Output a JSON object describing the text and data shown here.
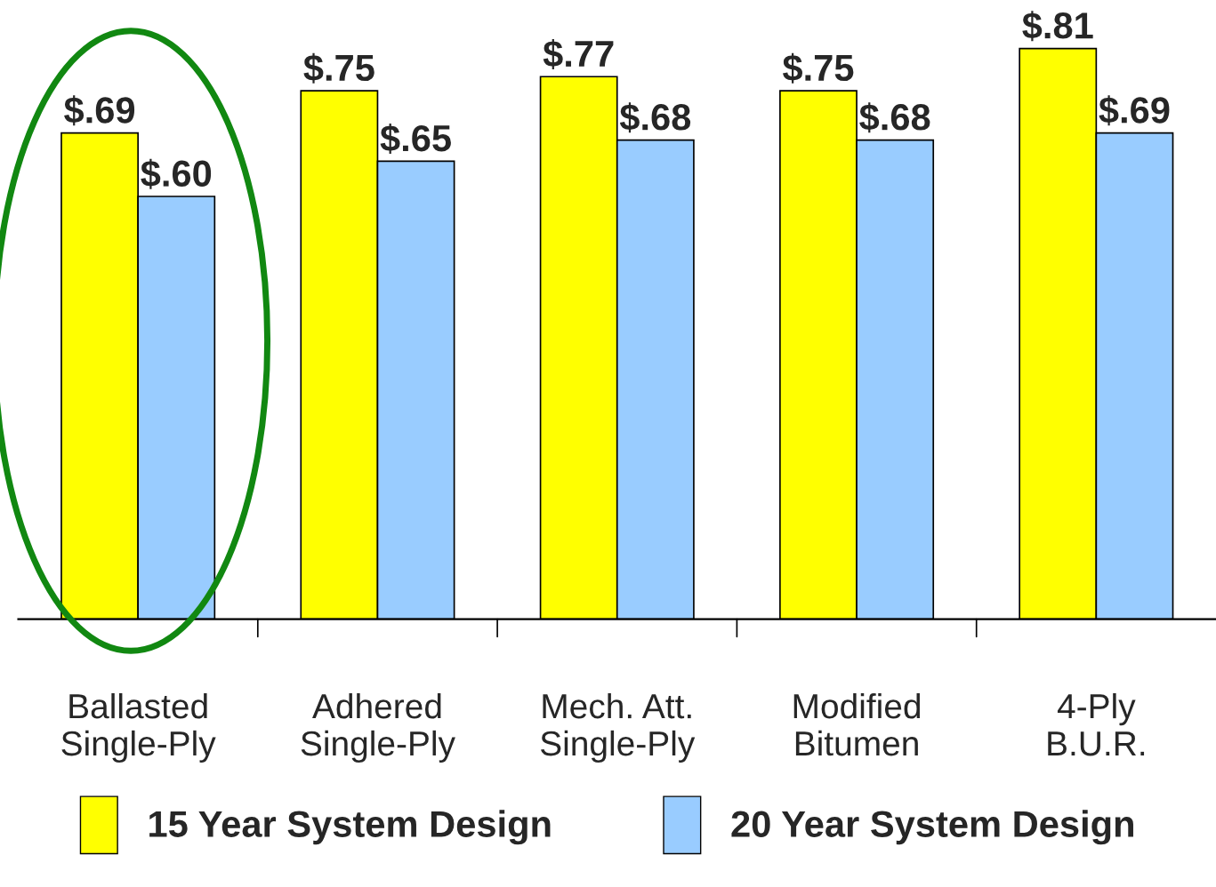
{
  "chart_data": {
    "type": "bar",
    "categories": [
      "Ballasted\nSingle-Ply",
      "Adhered\nSingle-Ply",
      "Mech. Att.\nSingle-Ply",
      "Modified\nBitumen",
      "4-Ply\nB.U.R."
    ],
    "series": [
      {
        "name": "15 Year System Design",
        "color": "#ffff00",
        "values": [
          0.69,
          0.75,
          0.77,
          0.75,
          0.81
        ],
        "value_labels": [
          "$.69",
          "$.75",
          "$.77",
          "$.75",
          "$.81"
        ]
      },
      {
        "name": "20 Year System Design",
        "color": "#99ccff",
        "values": [
          0.6,
          0.65,
          0.68,
          0.68,
          0.69
        ],
        "value_labels": [
          "$.60",
          "$.65",
          "$.68",
          "$.68",
          "$.69"
        ]
      }
    ],
    "tick_labels": "x",
    "legend": "bottom",
    "grid": false
  }
}
